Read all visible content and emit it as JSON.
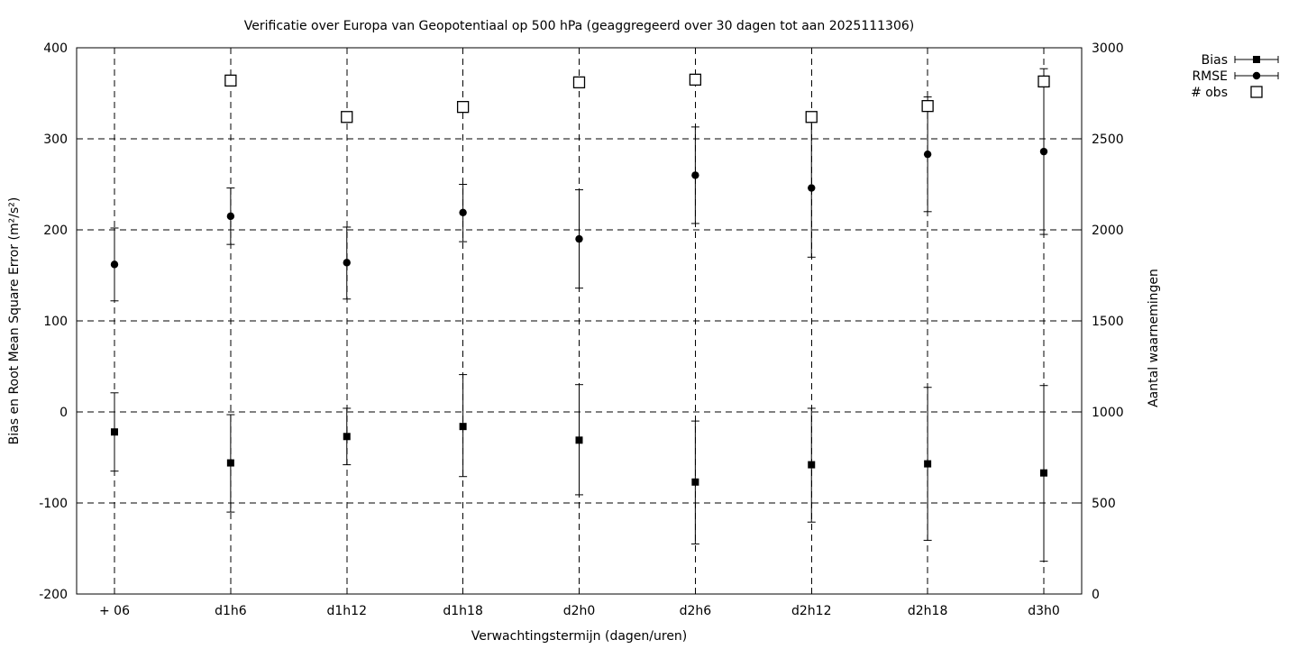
{
  "title": "Verificatie over Europa van Geopotentiaal op 500 hPa (geaggregeerd over 30 dagen tot aan 2025111306)",
  "colors": {
    "foreground": "#000000",
    "background": "#ffffff"
  },
  "chart_data": {
    "type": "scatter",
    "subtype": "errorbars-with-second-axis",
    "title": "Verificatie over Europa van Geopotentiaal op 500 hPa (geaggregeerd over 30 dagen tot aan 2025111306)",
    "xlabel": "Verwachtingstermijn (dagen/uren)",
    "ylabel_left": "Bias en Root Mean Square Error (m²/s²)",
    "ylabel_right": "Aantal waarnemingen",
    "ylim_left": [
      -200,
      400
    ],
    "ylim_right": [
      0,
      3000
    ],
    "grid": true,
    "legend_position": "top-right-outside",
    "yticks_left": [
      400,
      300,
      200,
      100,
      0,
      -100,
      -200
    ],
    "yticks_right": [
      3000,
      2500,
      2000,
      1500,
      1000,
      500,
      0
    ],
    "categories": [
      "+ 06",
      "d1h6",
      "d1h12",
      "d1h18",
      "d2h0",
      "d2h6",
      "d2h12",
      "d2h18",
      "d3h0"
    ],
    "series": [
      {
        "name": "Bias",
        "axis": "left",
        "marker": "filled-square",
        "has_error_bars": true,
        "values": [
          -22,
          -56,
          -27,
          -16,
          -31,
          -77,
          -58,
          -57,
          -67
        ],
        "err_high": [
          21,
          -3,
          4,
          41,
          30,
          -10,
          4,
          27,
          29
        ],
        "err_low": [
          -65,
          -110,
          -58,
          -71,
          -91,
          -145,
          -121,
          -141,
          -164
        ]
      },
      {
        "name": "RMSE",
        "axis": "left",
        "marker": "filled-circle",
        "has_error_bars": true,
        "values": [
          162,
          215,
          164,
          219,
          190,
          260,
          246,
          283,
          286
        ],
        "err_high": [
          202,
          246,
          203,
          250,
          244,
          313,
          322,
          346,
          377
        ],
        "err_low": [
          122,
          184,
          124,
          187,
          136,
          207,
          170,
          220,
          195
        ]
      },
      {
        "name": "# obs",
        "axis": "right",
        "marker": "open-square",
        "has_error_bars": false,
        "values": [
          null,
          2820,
          2620,
          2675,
          2810,
          2825,
          2620,
          2680,
          2815
        ]
      }
    ]
  }
}
